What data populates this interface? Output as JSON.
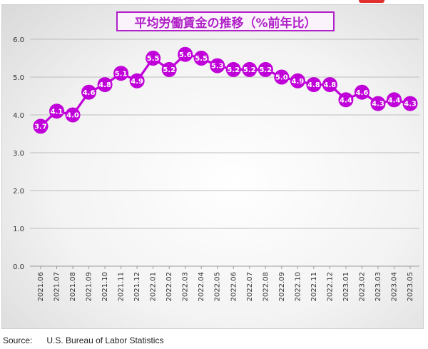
{
  "chart_data": {
    "type": "line",
    "title": "平均労働賃金の推移（%前年比）",
    "xlabel": "",
    "ylabel": "",
    "ylim": [
      0.0,
      6.0
    ],
    "yticks": [
      "0.0",
      "1.0",
      "2.0",
      "3.0",
      "4.0",
      "5.0",
      "6.0"
    ],
    "grid": true,
    "legend": "none",
    "categories": [
      "2021.06",
      "2021.07",
      "2021.08",
      "2021.09",
      "2021.10",
      "2021.11",
      "2021.12",
      "2022.01",
      "2022.02",
      "2022.03",
      "2022.04",
      "2022.05",
      "2022.06",
      "2022.07",
      "2022.08",
      "2022.09",
      "2022.10",
      "2022.11",
      "2022.12",
      "2023.01",
      "2023.02",
      "2023.03",
      "2023.04",
      "2023.05"
    ],
    "series": [
      {
        "values": [
          3.7,
          4.1,
          4.0,
          4.6,
          4.8,
          5.1,
          4.9,
          5.5,
          5.2,
          5.6,
          5.5,
          5.3,
          5.2,
          5.2,
          5.2,
          5.0,
          4.9,
          4.8,
          4.8,
          4.4,
          4.6,
          4.3,
          4.4,
          4.3
        ],
        "labels": [
          "3.7",
          "4.1",
          "4.0",
          "4.6",
          "4.8",
          "5.1",
          "4.9",
          "5.5",
          "5.2",
          "5.6",
          "5.5",
          "5.3",
          "5.2",
          "5.2",
          "5.2",
          "5.0",
          "4.9",
          "4.8",
          "4.8",
          "4.4",
          "4.6",
          "4.3",
          "4.4",
          "4.3"
        ],
        "color": "#c000d8"
      }
    ]
  },
  "source": {
    "label": "Source:",
    "text": "U.S. Bureau of Labor Statistics"
  },
  "colors": {
    "series": "#c000d8",
    "title": "#b020c8",
    "grid": "#bdbdbd",
    "axis_text": "#333333"
  }
}
